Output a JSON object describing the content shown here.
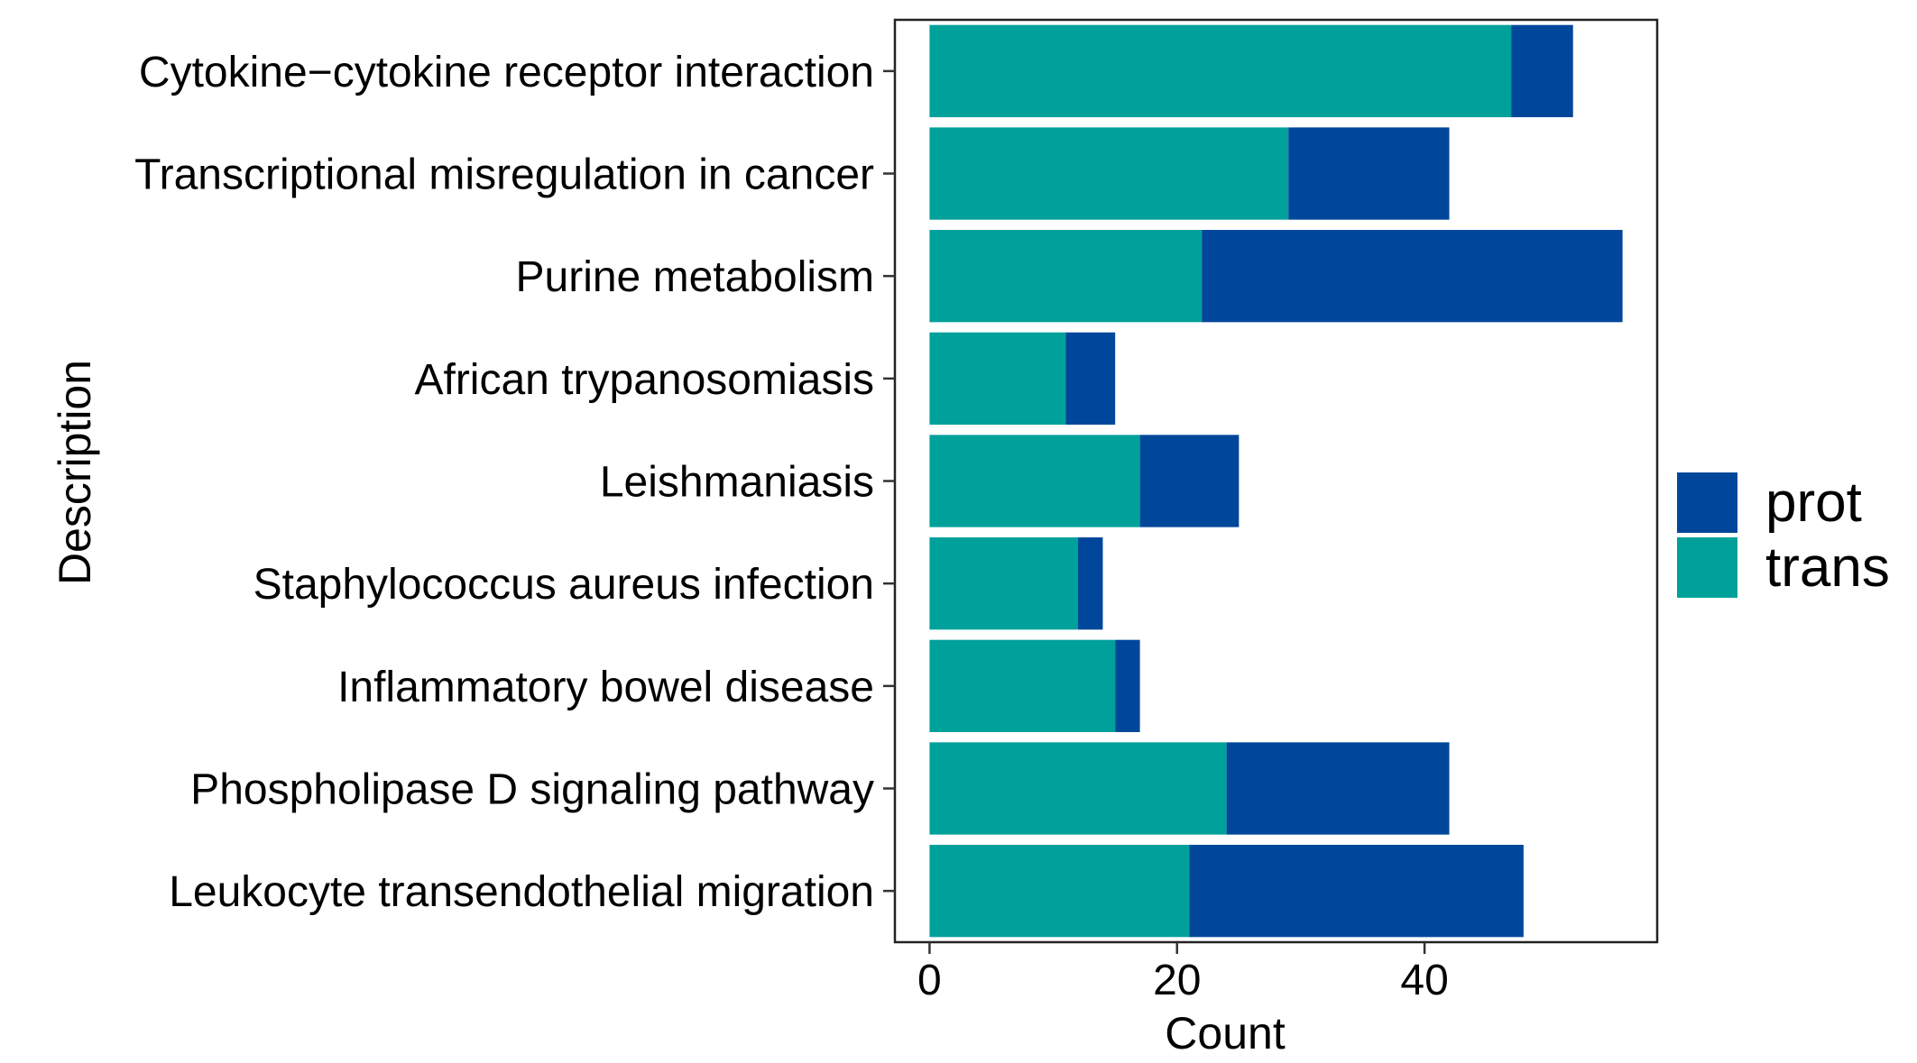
{
  "chart_data": {
    "type": "bar",
    "orientation": "horizontal",
    "stacked": true,
    "categories": [
      "Cytokine−cytokine receptor interaction",
      "Transcriptional misregulation in cancer",
      "Purine metabolism",
      "African trypanosomiasis",
      "Leishmaniasis",
      "Staphylococcus aureus infection",
      "Inflammatory bowel disease",
      "Phospholipase D signaling pathway",
      "Leukocyte transendothelial migration"
    ],
    "series": [
      {
        "name": "trans",
        "color": "#00A19A",
        "values": [
          47,
          29,
          22,
          11,
          17,
          12,
          15,
          24,
          21
        ]
      },
      {
        "name": "prot",
        "color": "#00479B",
        "values": [
          5,
          13,
          34,
          4,
          8,
          2,
          2,
          18,
          27
        ]
      }
    ],
    "legend_order": [
      "prot",
      "trans"
    ],
    "legend_position": "right",
    "xlabel": "Count",
    "ylabel": "Description",
    "xticks": [
      "0",
      "20",
      "40"
    ],
    "xlim": [
      -2.8,
      58.8
    ],
    "grid": false
  }
}
